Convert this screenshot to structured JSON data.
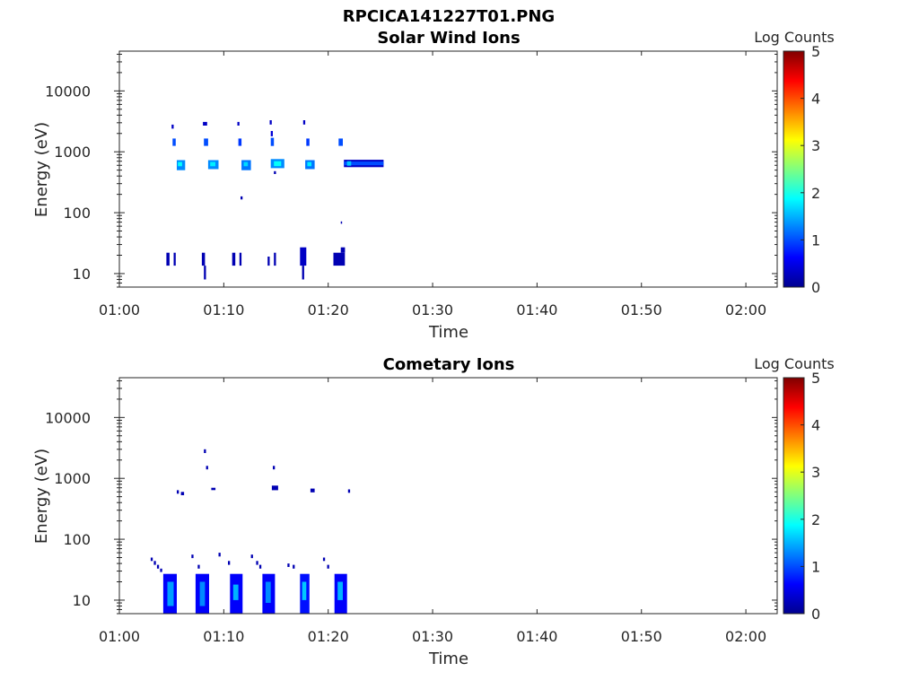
{
  "figure_title": "RPCICA141227T01.PNG",
  "chart_data": [
    {
      "type": "heatmap",
      "title": "Solar Wind Ions",
      "xlabel": "Time",
      "ylabel": "Energy (eV)",
      "x_ticks": [
        "01:00",
        "01:10",
        "01:20",
        "01:30",
        "01:40",
        "01:50",
        "02:00"
      ],
      "x_range_minutes": [
        0,
        63
      ],
      "y_scale": "log",
      "y_range": [
        6,
        45000
      ],
      "y_ticks": [
        10,
        100,
        1000,
        10000
      ],
      "y_tick_labels": [
        "10",
        "100",
        "1000",
        "10000"
      ],
      "colorbar": {
        "label": "Log Counts",
        "min": 0,
        "max": 5,
        "ticks": [
          "0",
          "1",
          "2",
          "3",
          "4",
          "5"
        ]
      },
      "cells": [
        {
          "t0": 4.5,
          "t1": 4.8,
          "e0": 13.5,
          "e1": 22,
          "v": 0.2
        },
        {
          "t0": 5.2,
          "t1": 5.4,
          "e0": 13.5,
          "e1": 22,
          "v": 0.2
        },
        {
          "t0": 7.9,
          "t1": 8.2,
          "e0": 13.5,
          "e1": 22,
          "v": 0.2
        },
        {
          "t0": 8.1,
          "t1": 8.3,
          "e0": 8,
          "e1": 13.5,
          "v": 0.2
        },
        {
          "t0": 10.8,
          "t1": 11.1,
          "e0": 13.5,
          "e1": 22,
          "v": 0.2
        },
        {
          "t0": 11.5,
          "t1": 11.7,
          "e0": 13.5,
          "e1": 22,
          "v": 0.2
        },
        {
          "t0": 14.2,
          "t1": 14.4,
          "e0": 13.5,
          "e1": 19,
          "v": 0.2
        },
        {
          "t0": 14.8,
          "t1": 15.0,
          "e0": 13.5,
          "e1": 22,
          "v": 0.2
        },
        {
          "t0": 17.3,
          "t1": 17.9,
          "e0": 13.5,
          "e1": 27,
          "v": 0.3
        },
        {
          "t0": 17.5,
          "t1": 17.7,
          "e0": 8,
          "e1": 13.5,
          "v": 0.2
        },
        {
          "t0": 20.5,
          "t1": 21.6,
          "e0": 13.5,
          "e1": 22,
          "v": 0.2
        },
        {
          "t0": 21.2,
          "t1": 21.6,
          "e0": 22,
          "e1": 27,
          "v": 0.2
        },
        {
          "t0": 5.5,
          "t1": 6.3,
          "e0": 500,
          "e1": 730,
          "v": 1.3
        },
        {
          "t0": 5.6,
          "t1": 6.0,
          "e0": 580,
          "e1": 680,
          "v": 1.9
        },
        {
          "t0": 8.5,
          "t1": 9.5,
          "e0": 520,
          "e1": 730,
          "v": 1.3
        },
        {
          "t0": 8.7,
          "t1": 9.2,
          "e0": 580,
          "e1": 680,
          "v": 1.8
        },
        {
          "t0": 11.7,
          "t1": 12.6,
          "e0": 500,
          "e1": 730,
          "v": 1.2
        },
        {
          "t0": 11.9,
          "t1": 12.3,
          "e0": 580,
          "e1": 680,
          "v": 1.7
        },
        {
          "t0": 14.5,
          "t1": 15.8,
          "e0": 540,
          "e1": 760,
          "v": 1.3
        },
        {
          "t0": 14.8,
          "t1": 15.5,
          "e0": 580,
          "e1": 700,
          "v": 1.9
        },
        {
          "t0": 17.8,
          "t1": 18.7,
          "e0": 520,
          "e1": 730,
          "v": 1.2
        },
        {
          "t0": 18.0,
          "t1": 18.4,
          "e0": 580,
          "e1": 680,
          "v": 1.8
        },
        {
          "t0": 21.5,
          "t1": 25.3,
          "e0": 560,
          "e1": 740,
          "v": 0.3
        },
        {
          "t0": 21.5,
          "t1": 25.3,
          "e0": 600,
          "e1": 690,
          "v": 1.0
        },
        {
          "t0": 21.8,
          "t1": 22.2,
          "e0": 590,
          "e1": 700,
          "v": 1.6
        },
        {
          "t0": 5.1,
          "t1": 5.4,
          "e0": 1250,
          "e1": 1650,
          "v": 1.0
        },
        {
          "t0": 8.1,
          "t1": 8.5,
          "e0": 1250,
          "e1": 1650,
          "v": 1.0
        },
        {
          "t0": 11.4,
          "t1": 11.7,
          "e0": 1250,
          "e1": 1650,
          "v": 0.9
        },
        {
          "t0": 14.5,
          "t1": 14.8,
          "e0": 1250,
          "e1": 1700,
          "v": 1.0
        },
        {
          "t0": 14.5,
          "t1": 14.7,
          "e0": 1800,
          "e1": 2200,
          "v": 0.4
        },
        {
          "t0": 17.9,
          "t1": 18.2,
          "e0": 1250,
          "e1": 1650,
          "v": 0.9
        },
        {
          "t0": 21.0,
          "t1": 21.4,
          "e0": 1250,
          "e1": 1650,
          "v": 1.0
        },
        {
          "t0": 5.0,
          "t1": 5.2,
          "e0": 2400,
          "e1": 2800,
          "v": 0.3
        },
        {
          "t0": 8.0,
          "t1": 8.4,
          "e0": 2700,
          "e1": 3100,
          "v": 0.3
        },
        {
          "t0": 11.3,
          "t1": 11.5,
          "e0": 2700,
          "e1": 3100,
          "v": 0.3
        },
        {
          "t0": 14.4,
          "t1": 14.6,
          "e0": 2800,
          "e1": 3300,
          "v": 0.3
        },
        {
          "t0": 17.6,
          "t1": 17.8,
          "e0": 2800,
          "e1": 3300,
          "v": 0.3
        },
        {
          "t0": 11.6,
          "t1": 11.8,
          "e0": 165,
          "e1": 185,
          "v": 0.2
        },
        {
          "t0": 14.8,
          "t1": 15.0,
          "e0": 430,
          "e1": 480,
          "v": 0.2
        },
        {
          "t0": 21.2,
          "t1": 21.3,
          "e0": 66,
          "e1": 72,
          "v": 0.2
        }
      ]
    },
    {
      "type": "heatmap",
      "title": "Cometary Ions",
      "xlabel": "Time",
      "ylabel": "Energy (eV)",
      "x_ticks": [
        "01:00",
        "01:10",
        "01:20",
        "01:30",
        "01:40",
        "01:50",
        "02:00"
      ],
      "x_range_minutes": [
        0,
        63
      ],
      "y_scale": "log",
      "y_range": [
        6,
        45000
      ],
      "y_ticks": [
        10,
        100,
        1000,
        10000
      ],
      "y_tick_labels": [
        "10",
        "100",
        "1000",
        "10000"
      ],
      "colorbar": {
        "label": "Log Counts",
        "min": 0,
        "max": 5,
        "ticks": [
          "0",
          "1",
          "2",
          "3",
          "4",
          "5"
        ]
      },
      "cells": [
        {
          "t0": 4.2,
          "t1": 5.5,
          "e0": 6,
          "e1": 27,
          "v": 0.6
        },
        {
          "t0": 4.6,
          "t1": 5.2,
          "e0": 8,
          "e1": 20,
          "v": 1.4
        },
        {
          "t0": 7.3,
          "t1": 8.6,
          "e0": 6,
          "e1": 27,
          "v": 0.6
        },
        {
          "t0": 7.7,
          "t1": 8.2,
          "e0": 8,
          "e1": 20,
          "v": 1.3
        },
        {
          "t0": 10.6,
          "t1": 11.8,
          "e0": 6,
          "e1": 27,
          "v": 0.6
        },
        {
          "t0": 10.9,
          "t1": 11.4,
          "e0": 10,
          "e1": 18,
          "v": 1.5
        },
        {
          "t0": 13.7,
          "t1": 14.9,
          "e0": 6,
          "e1": 27,
          "v": 0.6
        },
        {
          "t0": 14.0,
          "t1": 14.5,
          "e0": 9,
          "e1": 20,
          "v": 1.3
        },
        {
          "t0": 17.3,
          "t1": 18.2,
          "e0": 6,
          "e1": 27,
          "v": 0.7
        },
        {
          "t0": 17.5,
          "t1": 17.9,
          "e0": 10,
          "e1": 20,
          "v": 1.6
        },
        {
          "t0": 20.6,
          "t1": 21.8,
          "e0": 6,
          "e1": 27,
          "v": 0.6
        },
        {
          "t0": 20.9,
          "t1": 21.4,
          "e0": 10,
          "e1": 20,
          "v": 1.5
        },
        {
          "t0": 3.0,
          "t1": 3.2,
          "e0": 44,
          "e1": 50,
          "v": 0.2
        },
        {
          "t0": 3.3,
          "t1": 3.5,
          "e0": 38,
          "e1": 44,
          "v": 0.2
        },
        {
          "t0": 3.6,
          "t1": 3.8,
          "e0": 33,
          "e1": 38,
          "v": 0.2
        },
        {
          "t0": 3.9,
          "t1": 4.1,
          "e0": 29,
          "e1": 33,
          "v": 0.2
        },
        {
          "t0": 6.9,
          "t1": 7.1,
          "e0": 49,
          "e1": 56,
          "v": 0.2
        },
        {
          "t0": 7.5,
          "t1": 7.7,
          "e0": 33,
          "e1": 38,
          "v": 0.2
        },
        {
          "t0": 9.5,
          "t1": 9.7,
          "e0": 52,
          "e1": 60,
          "v": 0.2
        },
        {
          "t0": 10.4,
          "t1": 10.6,
          "e0": 38,
          "e1": 44,
          "v": 0.2
        },
        {
          "t0": 12.6,
          "t1": 12.8,
          "e0": 49,
          "e1": 56,
          "v": 0.2
        },
        {
          "t0": 13.1,
          "t1": 13.3,
          "e0": 38,
          "e1": 44,
          "v": 0.2
        },
        {
          "t0": 13.4,
          "t1": 13.6,
          "e0": 33,
          "e1": 38,
          "v": 0.2
        },
        {
          "t0": 16.1,
          "t1": 16.3,
          "e0": 35,
          "e1": 40,
          "v": 0.2
        },
        {
          "t0": 16.6,
          "t1": 16.8,
          "e0": 33,
          "e1": 38,
          "v": 0.2
        },
        {
          "t0": 19.5,
          "t1": 19.7,
          "e0": 44,
          "e1": 50,
          "v": 0.2
        },
        {
          "t0": 19.9,
          "t1": 20.1,
          "e0": 33,
          "e1": 38,
          "v": 0.2
        },
        {
          "t0": 5.5,
          "t1": 5.7,
          "e0": 560,
          "e1": 640,
          "v": 0.2
        },
        {
          "t0": 5.9,
          "t1": 6.2,
          "e0": 530,
          "e1": 600,
          "v": 0.2
        },
        {
          "t0": 8.8,
          "t1": 9.2,
          "e0": 640,
          "e1": 700,
          "v": 0.2
        },
        {
          "t0": 14.6,
          "t1": 15.2,
          "e0": 640,
          "e1": 760,
          "v": 0.2
        },
        {
          "t0": 18.3,
          "t1": 18.7,
          "e0": 590,
          "e1": 680,
          "v": 0.2
        },
        {
          "t0": 21.9,
          "t1": 22.1,
          "e0": 580,
          "e1": 660,
          "v": 0.2
        },
        {
          "t0": 8.1,
          "t1": 8.3,
          "e0": 2600,
          "e1": 3000,
          "v": 0.2
        },
        {
          "t0": 8.3,
          "t1": 8.5,
          "e0": 1400,
          "e1": 1600,
          "v": 0.2
        },
        {
          "t0": 14.7,
          "t1": 14.9,
          "e0": 1400,
          "e1": 1600,
          "v": 0.2
        }
      ]
    }
  ]
}
